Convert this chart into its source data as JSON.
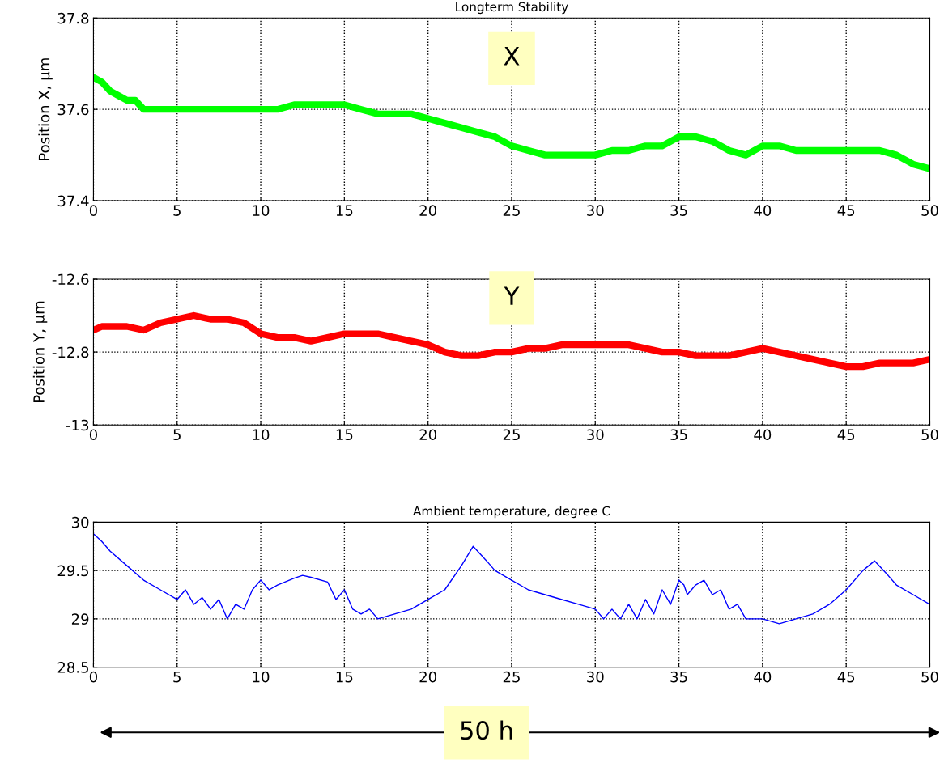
{
  "chart_data": [
    {
      "type": "line",
      "title": "Longterm Stability",
      "ylabel": "Position X, µm",
      "annotations": [
        "X"
      ],
      "xlim": [
        0,
        50
      ],
      "xticks": [
        0,
        5,
        10,
        15,
        20,
        25,
        30,
        35,
        40,
        45,
        50
      ],
      "ylim": [
        37.4,
        37.8
      ],
      "yticks": [
        37.4,
        37.6,
        37.8
      ],
      "grid": true,
      "line_style": "solid",
      "legend": false,
      "x": [
        0,
        0.5,
        1,
        1.5,
        2,
        2.5,
        3,
        3.5,
        4,
        5,
        6,
        7,
        8,
        9,
        10,
        11,
        12,
        13,
        14,
        15,
        16,
        17,
        18,
        19,
        20,
        21,
        22,
        23,
        24,
        25,
        26,
        27,
        28,
        29,
        30,
        31,
        32,
        33,
        34,
        35,
        36,
        37,
        38,
        39,
        40,
        41,
        42,
        43,
        44,
        45,
        46,
        47,
        48,
        49,
        50
      ],
      "series": [
        {
          "color": "#00ff00",
          "values": [
            37.67,
            37.66,
            37.64,
            37.63,
            37.62,
            37.62,
            37.6,
            37.6,
            37.6,
            37.6,
            37.6,
            37.6,
            37.6,
            37.6,
            37.6,
            37.6,
            37.61,
            37.61,
            37.61,
            37.61,
            37.6,
            37.59,
            37.59,
            37.59,
            37.58,
            37.57,
            37.56,
            37.55,
            37.54,
            37.52,
            37.51,
            37.5,
            37.5,
            37.5,
            37.5,
            37.51,
            37.51,
            37.52,
            37.52,
            37.54,
            37.54,
            37.53,
            37.51,
            37.5,
            37.52,
            37.52,
            37.51,
            37.51,
            37.51,
            37.51,
            37.51,
            37.51,
            37.5,
            37.48,
            37.47
          ]
        }
      ]
    },
    {
      "type": "line",
      "ylabel": "Position Y, µm",
      "annotations": [
        "Y"
      ],
      "xlim": [
        0,
        50
      ],
      "xticks": [
        0,
        5,
        10,
        15,
        20,
        25,
        30,
        35,
        40,
        45,
        50
      ],
      "ylim": [
        -13,
        -12.6
      ],
      "yticks": [
        -13,
        -12.8,
        -12.6
      ],
      "grid": true,
      "line_style": "solid",
      "legend": false,
      "x": [
        0,
        0.5,
        1,
        2,
        3,
        4,
        5,
        6,
        7,
        8,
        9,
        10,
        11,
        12,
        13,
        14,
        15,
        16,
        17,
        18,
        19,
        20,
        21,
        22,
        23,
        24,
        25,
        26,
        27,
        28,
        29,
        30,
        31,
        32,
        33,
        34,
        35,
        36,
        37,
        38,
        39,
        40,
        41,
        42,
        43,
        44,
        45,
        46,
        47,
        48,
        49,
        50
      ],
      "series": [
        {
          "color": "#ff0000",
          "values": [
            -12.74,
            -12.73,
            -12.73,
            -12.73,
            -12.74,
            -12.72,
            -12.71,
            -12.7,
            -12.71,
            -12.71,
            -12.72,
            -12.75,
            -12.76,
            -12.76,
            -12.77,
            -12.76,
            -12.75,
            -12.75,
            -12.75,
            -12.76,
            -12.77,
            -12.78,
            -12.8,
            -12.81,
            -12.81,
            -12.8,
            -12.8,
            -12.79,
            -12.79,
            -12.78,
            -12.78,
            -12.78,
            -12.78,
            -12.78,
            -12.79,
            -12.8,
            -12.8,
            -12.81,
            -12.81,
            -12.81,
            -12.8,
            -12.79,
            -12.8,
            -12.81,
            -12.82,
            -12.83,
            -12.84,
            -12.84,
            -12.83,
            -12.83,
            -12.83,
            -12.82
          ]
        }
      ]
    },
    {
      "type": "line",
      "title": "Ambient temperature, degree C",
      "annotations": [
        "50 h"
      ],
      "xlim": [
        0,
        50
      ],
      "xticks": [
        0,
        5,
        10,
        15,
        20,
        25,
        30,
        35,
        40,
        45,
        50
      ],
      "ylim": [
        28.5,
        30
      ],
      "yticks": [
        28.5,
        29,
        29.5,
        30
      ],
      "grid": true,
      "line_style": "solid",
      "legend": false,
      "x": [
        0,
        0.5,
        1,
        2,
        3,
        4,
        5,
        5.5,
        6,
        6.5,
        7,
        7.5,
        8,
        8.5,
        9,
        9.5,
        10,
        10.5,
        11,
        12,
        12.5,
        13,
        14,
        14.5,
        15,
        15.5,
        16,
        16.5,
        17,
        18,
        19,
        20,
        21,
        22,
        22.7,
        23.5,
        24,
        25,
        26,
        27,
        28,
        29,
        30,
        30.5,
        31,
        31.5,
        32,
        32.5,
        33,
        33.5,
        34,
        34.5,
        35,
        35.3,
        35.5,
        36,
        36.5,
        37,
        37.5,
        38,
        38.5,
        39,
        40,
        41,
        42,
        43,
        44,
        45,
        46,
        46.7,
        47.5,
        48,
        49,
        50
      ],
      "series": [
        {
          "color": "#0000ff",
          "values": [
            29.88,
            29.8,
            29.7,
            29.55,
            29.4,
            29.3,
            29.2,
            29.3,
            29.15,
            29.22,
            29.1,
            29.2,
            29.0,
            29.15,
            29.1,
            29.3,
            29.4,
            29.3,
            29.35,
            29.42,
            29.45,
            29.43,
            29.38,
            29.2,
            29.3,
            29.1,
            29.05,
            29.1,
            29.0,
            29.05,
            29.1,
            29.2,
            29.3,
            29.55,
            29.75,
            29.6,
            29.5,
            29.4,
            29.3,
            29.25,
            29.2,
            29.15,
            29.1,
            29.0,
            29.1,
            29.0,
            29.15,
            29.0,
            29.2,
            29.05,
            29.3,
            29.15,
            29.4,
            29.35,
            29.25,
            29.35,
            29.4,
            29.25,
            29.3,
            29.1,
            29.15,
            29.0,
            29.0,
            28.95,
            29.0,
            29.05,
            29.15,
            29.3,
            29.5,
            29.6,
            29.45,
            29.35,
            29.25,
            29.15
          ]
        }
      ]
    }
  ]
}
